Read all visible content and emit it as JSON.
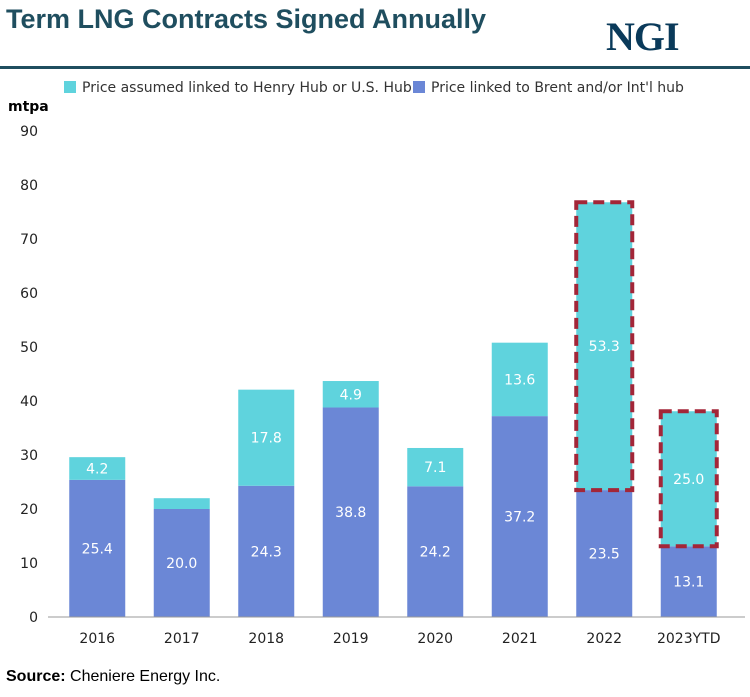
{
  "header": {
    "title": "Term LNG Contracts Signed Annually",
    "logo": "NGI"
  },
  "footer": {
    "source_label": "Source:",
    "source_text": "Cheniere Energy Inc."
  },
  "colors": {
    "henry_hub": "#5fd3dd",
    "brent": "#6b87d6",
    "highlight": "#a32638",
    "title": "#1f4e5f"
  },
  "chart_data": {
    "type": "bar",
    "stacked": true,
    "ylabel": "mtpa",
    "ylim": [
      0,
      90
    ],
    "yticks": [
      0,
      10,
      20,
      30,
      40,
      50,
      60,
      70,
      80,
      90
    ],
    "categories": [
      "2016",
      "2017",
      "2018",
      "2019",
      "2020",
      "2021",
      "2022",
      "2023YTD"
    ],
    "series": [
      {
        "name": "Price linked to Brent and/or Int'l hub",
        "values": [
          25.4,
          20.0,
          24.3,
          38.8,
          24.2,
          37.2,
          23.5,
          13.1
        ],
        "labels": [
          "25.4",
          "20.0",
          "24.3",
          "38.8",
          "24.2",
          "37.2",
          "23.5",
          "13.1"
        ]
      },
      {
        "name": "Price assumed linked to Henry Hub or U.S. Hub",
        "values": [
          4.2,
          2.0,
          17.8,
          4.9,
          7.1,
          13.6,
          53.3,
          25.0
        ],
        "labels": [
          "4.2",
          "",
          "17.8",
          "4.9",
          "7.1",
          "13.6",
          "53.3",
          "25.0"
        ]
      }
    ],
    "legend": [
      "Price assumed linked to Henry Hub or U.S. Hub",
      "Price linked to Brent and/or Int'l hub"
    ],
    "legend_position": "top",
    "highlighted_categories": [
      "2022",
      "2023YTD"
    ],
    "grid": false
  }
}
